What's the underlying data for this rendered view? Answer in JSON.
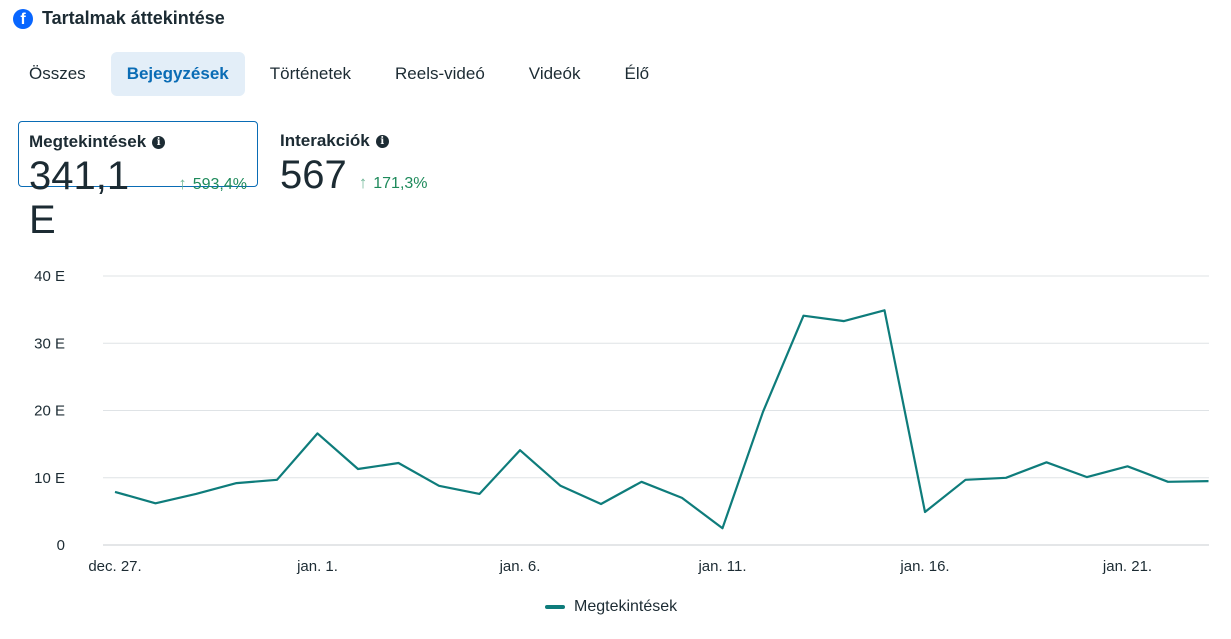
{
  "header": {
    "title": "Tartalmak áttekintése",
    "icon": "facebook-icon"
  },
  "tabs": [
    {
      "label": "Összes",
      "active": false
    },
    {
      "label": "Bejegyzések",
      "active": true
    },
    {
      "label": "Történetek",
      "active": false
    },
    {
      "label": "Reels-videó",
      "active": false
    },
    {
      "label": "Videók",
      "active": false
    },
    {
      "label": "Élő",
      "active": false
    }
  ],
  "metrics": [
    {
      "label": "Megtekintések",
      "value": "341,1 E",
      "change": "593,4%",
      "selected": true
    },
    {
      "label": "Interakciók",
      "value": "567",
      "change": "171,3%",
      "selected": false
    }
  ],
  "colors": {
    "series": "#0e7c7b",
    "accent": "#0a6cb5",
    "positive": "#1e8a5b"
  },
  "chart_data": {
    "type": "line",
    "title": "",
    "xlabel": "",
    "ylabel": "",
    "ylim": [
      0,
      40
    ],
    "y_ticks": [
      {
        "v": 0,
        "label": "0"
      },
      {
        "v": 10,
        "label": "10 E"
      },
      {
        "v": 20,
        "label": "20 E"
      },
      {
        "v": 30,
        "label": "30 E"
      },
      {
        "v": 40,
        "label": "40 E"
      }
    ],
    "x_ticks": [
      {
        "i": 0,
        "label": "dec. 27."
      },
      {
        "i": 5,
        "label": "jan. 1."
      },
      {
        "i": 10,
        "label": "jan. 6."
      },
      {
        "i": 15,
        "label": "jan. 11."
      },
      {
        "i": 20,
        "label": "jan. 16."
      },
      {
        "i": 25,
        "label": "jan. 21."
      }
    ],
    "grid": true,
    "legend_position": "bottom-center",
    "series": [
      {
        "name": "Megtekintések",
        "unit": "E (thousand)",
        "values": [
          7.9,
          6.2,
          7.6,
          9.2,
          9.7,
          16.6,
          11.3,
          12.2,
          8.8,
          7.6,
          14.1,
          8.8,
          6.1,
          9.4,
          7.0,
          2.5,
          19.8,
          34.1,
          33.3,
          34.9,
          4.9,
          9.7,
          10.0,
          12.3,
          10.1,
          11.7,
          9.4,
          9.5
        ]
      }
    ]
  }
}
